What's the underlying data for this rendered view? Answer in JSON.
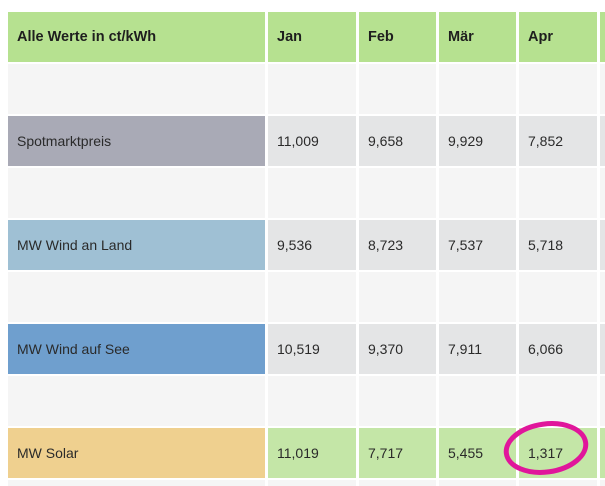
{
  "table": {
    "header": [
      "Alle Werte in ct/kWh",
      "Jan",
      "Feb",
      "Mär",
      "Apr"
    ],
    "rows": [
      [
        "Spotmarktpreis",
        "11,009",
        "9,658",
        "9,929",
        "7,852"
      ],
      [
        "MW Wind an Land",
        "9,536",
        "8,723",
        "7,537",
        "5,718"
      ],
      [
        "MW Wind auf See",
        "10,519",
        "9,370",
        "7,911",
        "6,066"
      ],
      [
        "MW Solar",
        "11,019",
        "7,717",
        "5,455",
        "1,317"
      ]
    ]
  }
}
